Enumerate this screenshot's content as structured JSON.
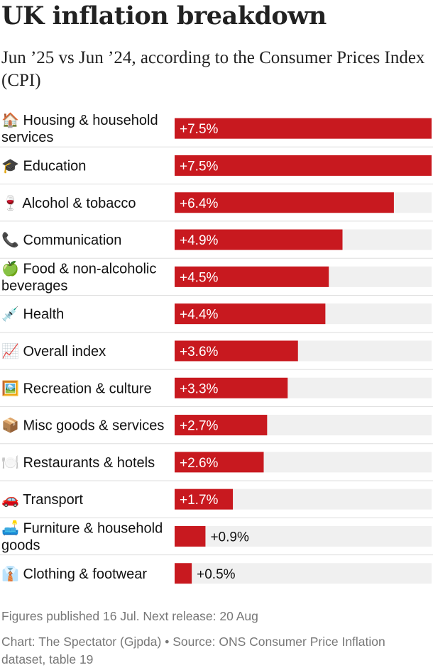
{
  "title": "UK inflation breakdown",
  "subtitle": "Jun ’25 vs Jun ’24, according to the Consumer Prices Index (CPI)",
  "note": "Figures published 16 Jul. Next release: 20 Aug",
  "source": "Chart: The Spectator (Gjpda) • Source: ONS Consumer Price Inflation dataset, table 19",
  "colors": {
    "bar": "#c8191f",
    "highlight": "#1a87c8",
    "track": "#f0f0f0",
    "divider": "#dddddd"
  },
  "chart_data": {
    "type": "bar",
    "orientation": "horizontal",
    "xlim": [
      0,
      7.5
    ],
    "highlight_category": "Overall index",
    "categories": [
      "🏠 Housing & household services",
      "🎓 Education",
      "🍷 Alcohol & tobacco",
      "📞 Communication",
      "🍏 Food & non-alcoholic beverages",
      "💉 Health",
      "📈 Overall index",
      "🖼️ Recreation & culture",
      "📦 Misc goods & services",
      "🍽️ Restaurants & hotels",
      "🚗 Transport",
      "🛋️ Furniture & household goods",
      "👔 Clothing & footwear"
    ],
    "values": [
      7.5,
      7.5,
      6.4,
      4.9,
      4.5,
      4.4,
      3.6,
      3.3,
      2.7,
      2.6,
      1.7,
      0.9,
      0.5
    ],
    "value_labels": [
      "+7.5%",
      "+7.5%",
      "+6.4%",
      "+4.9%",
      "+4.5%",
      "+4.4%",
      "+3.6%",
      "+3.3%",
      "+2.7%",
      "+2.6%",
      "+1.7%",
      "+0.9%",
      "+0.5%"
    ]
  }
}
